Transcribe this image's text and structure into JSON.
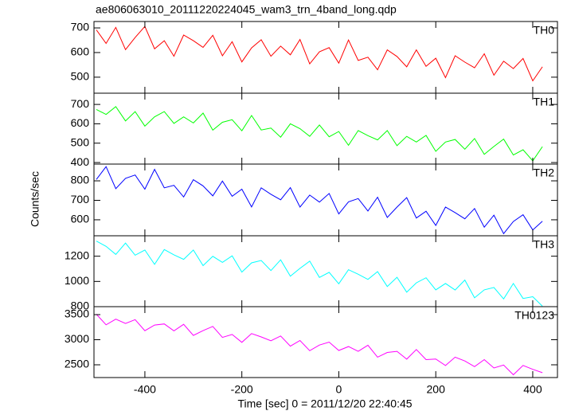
{
  "chart_data": [
    {
      "type": "line",
      "title": "ae806063010_20111220224045_wam3_trn_4band_long.qdp",
      "label": "TH0",
      "color": "#ff0000",
      "x": [
        -500,
        -480,
        -460,
        -440,
        -420,
        -400,
        -380,
        -360,
        -340,
        -320,
        -300,
        -280,
        -260,
        -240,
        -220,
        -200,
        -180,
        -160,
        -140,
        -120,
        -100,
        -80,
        -60,
        -40,
        -20,
        0,
        20,
        40,
        60,
        80,
        100,
        120,
        140,
        160,
        180,
        200,
        220,
        240,
        260,
        280,
        300,
        320,
        340,
        360,
        380,
        400,
        420
      ],
      "values": [
        692,
        637,
        702,
        612,
        661,
        706,
        615,
        648,
        585,
        671,
        648,
        621,
        670,
        587,
        644,
        562,
        619,
        652,
        585,
        626,
        591,
        653,
        554,
        603,
        620,
        557,
        651,
        568,
        581,
        530,
        611,
        584,
        542,
        611,
        544,
        577,
        498,
        587,
        561,
        538,
        595,
        508,
        565,
        535,
        576,
        485,
        542
      ],
      "xlim": [
        -505,
        451
      ],
      "ylim": [
        435,
        726
      ],
      "yticks": [
        500,
        600,
        700
      ]
    },
    {
      "type": "line",
      "label": "TH1",
      "color": "#00ff00",
      "x": [
        -500,
        -480,
        -460,
        -440,
        -420,
        -400,
        -380,
        -360,
        -340,
        -320,
        -300,
        -280,
        -260,
        -240,
        -220,
        -200,
        -180,
        -160,
        -140,
        -120,
        -100,
        -80,
        -60,
        -40,
        -20,
        0,
        20,
        40,
        60,
        80,
        100,
        120,
        140,
        160,
        180,
        200,
        220,
        240,
        260,
        280,
        300,
        320,
        340,
        360,
        380,
        400,
        420
      ],
      "values": [
        674,
        648,
        689,
        615,
        663,
        588,
        636,
        663,
        602,
        636,
        604,
        655,
        567,
        608,
        621,
        564,
        643,
        568,
        578,
        531,
        600,
        575,
        535,
        594,
        533,
        560,
        489,
        565,
        539,
        517,
        565,
        487,
        535,
        506,
        540,
        458,
        506,
        519,
        469,
        524,
        442,
        483,
        521,
        439,
        466,
        409,
        482
      ],
      "xlim": [
        -505,
        451
      ],
      "ylim": [
        392,
        758
      ],
      "yticks": [
        400,
        500,
        600,
        700
      ]
    },
    {
      "type": "line",
      "label": "TH2",
      "color": "#0000ff",
      "ylabel": "Counts/sec",
      "x": [
        -500,
        -480,
        -460,
        -440,
        -420,
        -400,
        -380,
        -360,
        -340,
        -320,
        -300,
        -280,
        -260,
        -240,
        -220,
        -200,
        -180,
        -160,
        -140,
        -120,
        -100,
        -80,
        -60,
        -40,
        -20,
        0,
        20,
        40,
        60,
        80,
        100,
        120,
        140,
        160,
        180,
        200,
        220,
        240,
        260,
        280,
        300,
        320,
        340,
        360,
        380,
        400,
        420
      ],
      "values": [
        807,
        873,
        760,
        813,
        830,
        757,
        859,
        764,
        777,
        717,
        806,
        774,
        723,
        799,
        721,
        757,
        666,
        764,
        731,
        703,
        765,
        665,
        727,
        691,
        735,
        630,
        692,
        709,
        645,
        716,
        612,
        665,
        714,
        609,
        644,
        571,
        665,
        637,
        605,
        658,
        562,
        624,
        529,
        591,
        626,
        548,
        593
      ],
      "xlim": [
        -505,
        451
      ],
      "ylim": [
        518,
        886
      ],
      "yticks": [
        600,
        700,
        800
      ]
    },
    {
      "type": "line",
      "label": "TH3",
      "color": "#00ffff",
      "x": [
        -500,
        -480,
        -460,
        -440,
        -420,
        -400,
        -380,
        -360,
        -340,
        -320,
        -300,
        -280,
        -260,
        -240,
        -220,
        -200,
        -180,
        -160,
        -140,
        -120,
        -100,
        -80,
        -60,
        -40,
        -20,
        0,
        20,
        40,
        60,
        80,
        100,
        120,
        140,
        160,
        180,
        200,
        220,
        240,
        260,
        280,
        300,
        320,
        340,
        360,
        380,
        400,
        420
      ],
      "values": [
        1320,
        1278,
        1214,
        1304,
        1208,
        1249,
        1135,
        1253,
        1211,
        1175,
        1249,
        1125,
        1199,
        1151,
        1203,
        1074,
        1147,
        1166,
        1086,
        1171,
        1041,
        1104,
        1161,
        1032,
        1072,
        981,
        1093,
        1057,
        1016,
        1078,
        960,
        1033,
        915,
        989,
        1029,
        933,
        984,
        932,
        1011,
        870,
        933,
        952,
        861,
        984,
        865,
        879,
        804
      ],
      "xlim": [
        -505,
        451
      ],
      "ylim": [
        800,
        1362
      ],
      "yticks": [
        800,
        1000,
        1200
      ]
    },
    {
      "type": "line",
      "label": "TH0123",
      "color": "#ff00ff",
      "xlabel": "Time [sec] 0 = 2011/12/20 22:40:45",
      "x": [
        -500,
        -480,
        -460,
        -440,
        -420,
        -400,
        -380,
        -360,
        -340,
        -320,
        -300,
        -280,
        -260,
        -240,
        -220,
        -200,
        -180,
        -160,
        -140,
        -120,
        -100,
        -80,
        -60,
        -40,
        -20,
        0,
        20,
        40,
        60,
        80,
        100,
        120,
        140,
        160,
        180,
        200,
        220,
        240,
        260,
        280,
        300,
        320,
        340,
        360,
        380,
        400,
        420
      ],
      "values": [
        3508,
        3297,
        3409,
        3324,
        3400,
        3180,
        3293,
        3315,
        3176,
        3307,
        3086,
        3181,
        3266,
        3046,
        3105,
        2947,
        3123,
        3055,
        2979,
        3074,
        2871,
        2984,
        2781,
        2894,
        2953,
        2786,
        2863,
        2768,
        2890,
        2652,
        2746,
        2769,
        2612,
        2805,
        2603,
        2616,
        2486,
        2653,
        2576,
        2464,
        2603,
        2437,
        2496,
        2302,
        2487,
        2410,
        2343
      ],
      "xlim": [
        -505,
        451
      ],
      "ylim": [
        2246,
        3659
      ],
      "yticks": [
        2500,
        3000,
        3500
      ],
      "xticks": [
        -400,
        -200,
        0,
        200,
        400
      ]
    }
  ]
}
